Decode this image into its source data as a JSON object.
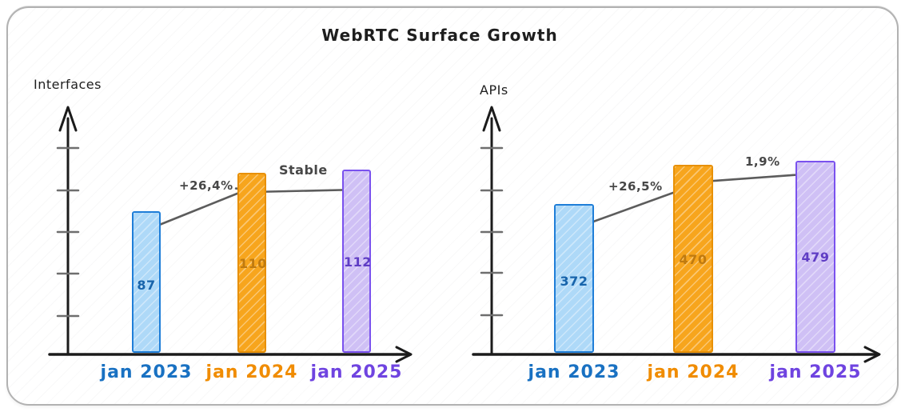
{
  "title": "WebRTC Surface Growth",
  "chart_data": [
    {
      "type": "bar",
      "title": "Interfaces",
      "ylabel": "Interfaces",
      "xlabel": "",
      "categories": [
        "jan 2023",
        "jan 2024",
        "jan 2025"
      ],
      "values": [
        87,
        110,
        112
      ],
      "value_labels": [
        "87",
        "110",
        "112"
      ],
      "bar_colors": [
        "blue",
        "orange",
        "violet"
      ],
      "annotations": [
        {
          "text": "+26,4%",
          "meaning": "growth jan 2023 to jan 2024"
        },
        {
          "text": "Stable",
          "meaning": "jan 2024 to jan 2025"
        }
      ],
      "grid": false,
      "legend": "none",
      "y_axis_ticks_unlabeled": 5
    },
    {
      "type": "bar",
      "title": "APIs",
      "ylabel": "APIs",
      "xlabel": "",
      "categories": [
        "jan 2023",
        "jan 2024",
        "jan 2025"
      ],
      "values": [
        372,
        470,
        479
      ],
      "value_labels": [
        "372",
        "470",
        "479"
      ],
      "bar_colors": [
        "blue",
        "orange",
        "violet"
      ],
      "annotations": [
        {
          "text": "+26,5%",
          "meaning": "growth jan 2023 to jan 2024"
        },
        {
          "text": "1,9%",
          "meaning": "growth jan 2024 to jan 2025"
        }
      ],
      "grid": false,
      "legend": "none",
      "y_axis_ticks_unlabeled": 5
    }
  ],
  "palette": {
    "blue": {
      "fill": "#aed9f8",
      "stroke": "#1f7ed8",
      "value_text": "#1864ab",
      "label_text": "#1971c2"
    },
    "orange": {
      "fill": "#f7a51d",
      "stroke": "#e89005",
      "value_text": "#bf7a10",
      "label_text": "#f08c00"
    },
    "violet": {
      "fill": "#cfc0f5",
      "stroke": "#7a52ee",
      "value_text": "#5f3dc4",
      "label_text": "#6f44e0"
    }
  },
  "axis_color": "#1b1b1b",
  "tick_color": "#6e6e6e",
  "arrow_color": "#5c5c5c"
}
